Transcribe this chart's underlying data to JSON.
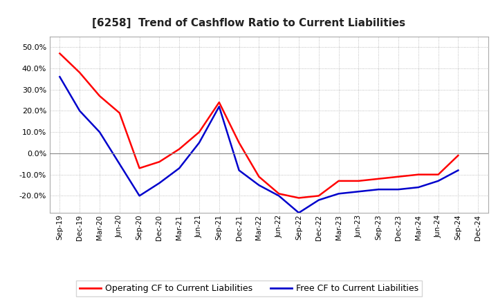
{
  "title": "[6258]  Trend of Cashflow Ratio to Current Liabilities",
  "x_labels": [
    "Sep-19",
    "Dec-19",
    "Mar-20",
    "Jun-20",
    "Sep-20",
    "Dec-20",
    "Mar-21",
    "Jun-21",
    "Sep-21",
    "Dec-21",
    "Mar-22",
    "Jun-22",
    "Sep-22",
    "Dec-22",
    "Mar-23",
    "Jun-23",
    "Sep-23",
    "Dec-23",
    "Mar-24",
    "Jun-24",
    "Sep-24",
    "Dec-24"
  ],
  "operating_cf": [
    0.47,
    0.38,
    0.27,
    0.19,
    -0.07,
    -0.04,
    0.02,
    0.1,
    0.24,
    0.05,
    -0.11,
    -0.19,
    -0.21,
    -0.2,
    -0.13,
    -0.13,
    -0.12,
    -0.11,
    -0.1,
    -0.1,
    -0.01,
    null
  ],
  "free_cf": [
    0.36,
    0.2,
    0.1,
    -0.05,
    -0.2,
    -0.14,
    -0.07,
    0.05,
    0.22,
    -0.08,
    -0.15,
    -0.2,
    -0.28,
    -0.22,
    -0.19,
    -0.18,
    -0.17,
    -0.17,
    -0.16,
    -0.13,
    -0.08,
    null
  ],
  "ylim": [
    -0.28,
    0.55
  ],
  "yticks": [
    -0.2,
    -0.1,
    0.0,
    0.1,
    0.2,
    0.3,
    0.4,
    0.5
  ],
  "operating_color": "#FF0000",
  "free_color": "#0000CC",
  "background_color": "#FFFFFF",
  "grid_color": "#AAAAAA",
  "legend_operating": "Operating CF to Current Liabilities",
  "legend_free": "Free CF to Current Liabilities"
}
